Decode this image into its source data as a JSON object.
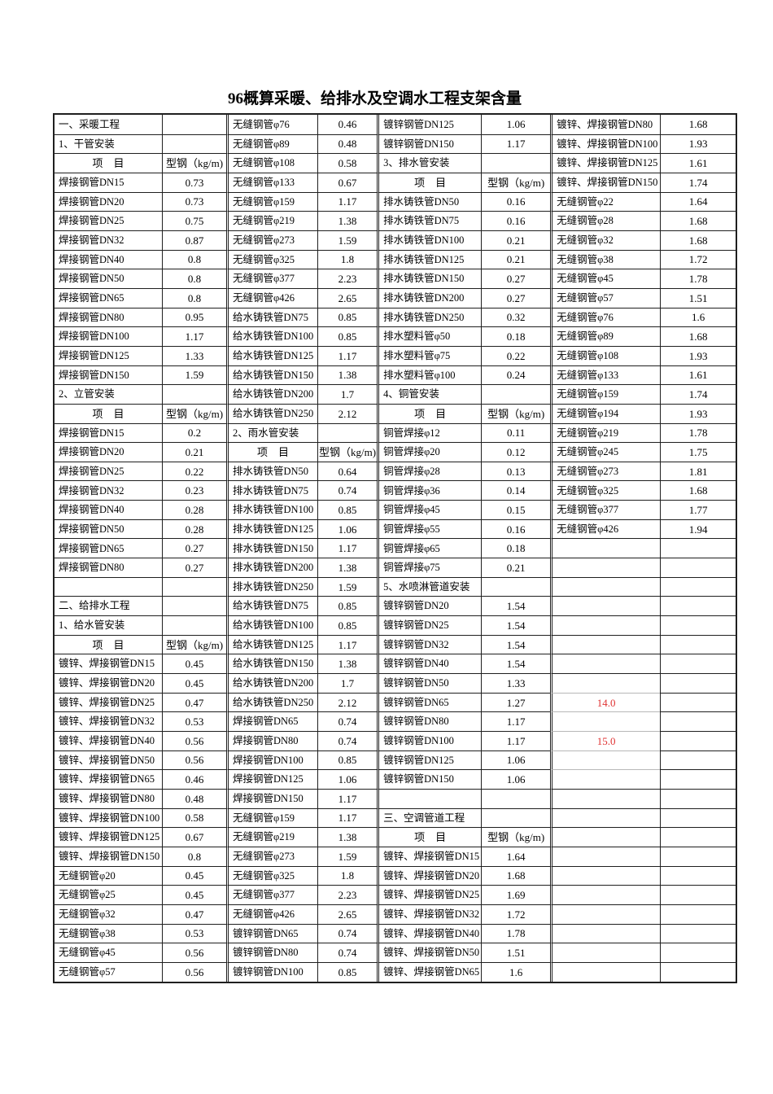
{
  "title": "96概算采暖、给排水及空调水工程支架含量",
  "colors": {
    "background": "#ffffff",
    "grid": "#1f1f1f",
    "light_grid": "#b8b8b8",
    "red": "#e03333"
  },
  "table": {
    "item_header": "项　目",
    "value_header": "型钢（kg/m)",
    "rows": [
      [
        "一、采暖工程",
        "",
        "无缝钢管φ76",
        "0.46",
        "镀锌钢管DN125",
        "1.06",
        "镀锌、焊接钢管DN80",
        "1.68"
      ],
      [
        "1、干管安装",
        "",
        "无缝钢管φ89",
        "0.48",
        "镀锌钢管DN150",
        "1.17",
        "镀锌、焊接钢管DN100",
        "1.93"
      ],
      [
        "项　目",
        "型钢（kg/m)",
        "无缝钢管φ108",
        "0.58",
        "3、排水管安装",
        "",
        "镀锌、焊接钢管DN125",
        "1.61"
      ],
      [
        "焊接钢管DN15",
        "0.73",
        "无缝钢管φ133",
        "0.67",
        "项　目",
        "型钢（kg/m)",
        "镀锌、焊接钢管DN150",
        "1.74"
      ],
      [
        "焊接钢管DN20",
        "0.73",
        "无缝钢管φ159",
        "1.17",
        "排水铸铁管DN50",
        "0.16",
        "无缝钢管φ22",
        "1.64"
      ],
      [
        "焊接钢管DN25",
        "0.75",
        "无缝钢管φ219",
        "1.38",
        "排水铸铁管DN75",
        "0.16",
        "无缝钢管φ28",
        "1.68"
      ],
      [
        "焊接钢管DN32",
        "0.87",
        "无缝钢管φ273",
        "1.59",
        "排水铸铁管DN100",
        "0.21",
        "无缝钢管φ32",
        "1.68"
      ],
      [
        "焊接钢管DN40",
        "0.8",
        "无缝钢管φ325",
        "1.8",
        "排水铸铁管DN125",
        "0.21",
        "无缝钢管φ38",
        "1.72"
      ],
      [
        "焊接钢管DN50",
        "0.8",
        "无缝钢管φ377",
        "2.23",
        "排水铸铁管DN150",
        "0.27",
        "无缝钢管φ45",
        "1.78"
      ],
      [
        "焊接钢管DN65",
        "0.8",
        "无缝钢管φ426",
        "2.65",
        "排水铸铁管DN200",
        "0.27",
        "无缝钢管φ57",
        "1.51"
      ],
      [
        "焊接钢管DN80",
        "0.95",
        "给水铸铁管DN75",
        "0.85",
        "排水铸铁管DN250",
        "0.32",
        "无缝钢管φ76",
        "1.6"
      ],
      [
        "焊接钢管DN100",
        "1.17",
        "给水铸铁管DN100",
        "0.85",
        "排水塑料管φ50",
        "0.18",
        "无缝钢管φ89",
        "1.68"
      ],
      [
        "焊接钢管DN125",
        "1.33",
        "给水铸铁管DN125",
        "1.17",
        "排水塑料管φ75",
        "0.22",
        "无缝钢管φ108",
        "1.93"
      ],
      [
        "焊接钢管DN150",
        "1.59",
        "给水铸铁管DN150",
        "1.38",
        "排水塑料管φ100",
        "0.24",
        "无缝钢管φ133",
        "1.61"
      ],
      [
        "2、立管安装",
        "",
        "给水铸铁管DN200",
        "1.7",
        "4、铜管安装",
        "",
        "无缝钢管φ159",
        "1.74"
      ],
      [
        "项　目",
        "型钢（kg/m)",
        "给水铸铁管DN250",
        "2.12",
        "项　目",
        "型钢（kg/m)",
        "无缝钢管φ194",
        "1.93"
      ],
      [
        "焊接钢管DN15",
        "0.2",
        "2、雨水管安装",
        "",
        "铜管焊接φ12",
        "0.11",
        "无缝钢管φ219",
        "1.78"
      ],
      [
        "焊接钢管DN20",
        "0.21",
        "项　目",
        "型钢（kg/m)",
        "铜管焊接φ20",
        "0.12",
        "无缝钢管φ245",
        "1.75"
      ],
      [
        "焊接钢管DN25",
        "0.22",
        "排水铸铁管DN50",
        "0.64",
        "铜管焊接φ28",
        "0.13",
        "无缝钢管φ273",
        "1.81"
      ],
      [
        "焊接钢管DN32",
        "0.23",
        "排水铸铁管DN75",
        "0.74",
        "铜管焊接φ36",
        "0.14",
        "无缝钢管φ325",
        "1.68"
      ],
      [
        "焊接钢管DN40",
        "0.28",
        "排水铸铁管DN100",
        "0.85",
        "铜管焊接φ45",
        "0.15",
        "无缝钢管φ377",
        "1.77"
      ],
      [
        "焊接钢管DN50",
        "0.28",
        "排水铸铁管DN125",
        "1.06",
        "铜管焊接φ55",
        "0.16",
        "无缝钢管φ426",
        "1.94"
      ],
      [
        "焊接钢管DN65",
        "0.27",
        "排水铸铁管DN150",
        "1.17",
        "铜管焊接φ65",
        "0.18",
        "",
        ""
      ],
      [
        "焊接钢管DN80",
        "0.27",
        "排水铸铁管DN200",
        "1.38",
        "铜管焊接φ75",
        "0.21",
        "",
        ""
      ],
      [
        "",
        "",
        "排水铸铁管DN250",
        "1.59",
        "5、水喷淋管道安装",
        "",
        "",
        ""
      ],
      [
        "二、给排水工程",
        "",
        "给水铸铁管DN75",
        "0.85",
        "镀锌钢管DN20",
        "1.54",
        "",
        ""
      ],
      [
        "1、给水管安装",
        "",
        "给水铸铁管DN100",
        "0.85",
        "镀锌钢管DN25",
        "1.54",
        "",
        ""
      ],
      [
        "项　目",
        "型钢（kg/m)",
        "给水铸铁管DN125",
        "1.17",
        "镀锌钢管DN32",
        "1.54",
        "",
        ""
      ],
      [
        "镀锌、焊接钢管DN15",
        "0.45",
        "给水铸铁管DN150",
        "1.38",
        "镀锌钢管DN40",
        "1.54",
        "",
        ""
      ],
      [
        "镀锌、焊接钢管DN20",
        "0.45",
        "给水铸铁管DN200",
        "1.7",
        "镀锌钢管DN50",
        "1.33",
        "",
        ""
      ],
      [
        "镀锌、焊接钢管DN25",
        "0.47",
        "给水铸铁管DN250",
        "2.12",
        "镀锌钢管DN65",
        "1.27",
        "14.0",
        ""
      ],
      [
        "镀锌、焊接钢管DN32",
        "0.53",
        "焊接钢管DN65",
        "0.74",
        "镀锌钢管DN80",
        "1.17",
        "",
        ""
      ],
      [
        "镀锌、焊接钢管DN40",
        "0.56",
        "焊接钢管DN80",
        "0.74",
        "镀锌钢管DN100",
        "1.17",
        "15.0",
        ""
      ],
      [
        "镀锌、焊接钢管DN50",
        "0.56",
        "焊接钢管DN100",
        "0.85",
        "镀锌钢管DN125",
        "1.06",
        "",
        ""
      ],
      [
        "镀锌、焊接钢管DN65",
        "0.46",
        "焊接钢管DN125",
        "1.06",
        "镀锌钢管DN150",
        "1.06",
        "",
        ""
      ],
      [
        "镀锌、焊接钢管DN80",
        "0.48",
        "焊接钢管DN150",
        "1.17",
        "",
        "",
        "",
        ""
      ],
      [
        "镀锌、焊接钢管DN100",
        "0.58",
        "无缝钢管φ159",
        "1.17",
        "三、空调管道工程",
        "",
        "",
        ""
      ],
      [
        "镀锌、焊接钢管DN125",
        "0.67",
        "无缝钢管φ219",
        "1.38",
        "项　目",
        "型钢（kg/m)",
        "",
        ""
      ],
      [
        "镀锌、焊接钢管DN150",
        "0.8",
        "无缝钢管φ273",
        "1.59",
        "镀锌、焊接钢管DN15",
        "1.64",
        "",
        ""
      ],
      [
        "无缝钢管φ20",
        "0.45",
        "无缝钢管φ325",
        "1.8",
        "镀锌、焊接钢管DN20",
        "1.68",
        "",
        ""
      ],
      [
        "无缝钢管φ25",
        "0.45",
        "无缝钢管φ377",
        "2.23",
        "镀锌、焊接钢管DN25",
        "1.69",
        "",
        ""
      ],
      [
        "无缝钢管φ32",
        "0.47",
        "无缝钢管φ426",
        "2.65",
        "镀锌、焊接钢管DN32",
        "1.72",
        "",
        ""
      ],
      [
        "无缝钢管φ38",
        "0.53",
        "镀锌钢管DN65",
        "0.74",
        "镀锌、焊接钢管DN40",
        "1.78",
        "",
        ""
      ],
      [
        "无缝钢管φ45",
        "0.56",
        "镀锌钢管DN80",
        "0.74",
        "镀锌、焊接钢管DN50",
        "1.51",
        "",
        ""
      ],
      [
        "无缝钢管φ57",
        "0.56",
        "镀锌钢管DN100",
        "0.85",
        "镀锌、焊接钢管DN65",
        "1.6",
        "",
        ""
      ]
    ],
    "red_cells": [
      {
        "row": 30,
        "col": 6
      },
      {
        "row": 32,
        "col": 6
      }
    ],
    "light_top_border_cells": [
      {
        "row": 30,
        "col": 6
      },
      {
        "row": 31,
        "col": 6
      },
      {
        "row": 32,
        "col": 6
      },
      {
        "row": 33,
        "col": 6
      },
      {
        "row": 34,
        "col": 6
      }
    ]
  }
}
